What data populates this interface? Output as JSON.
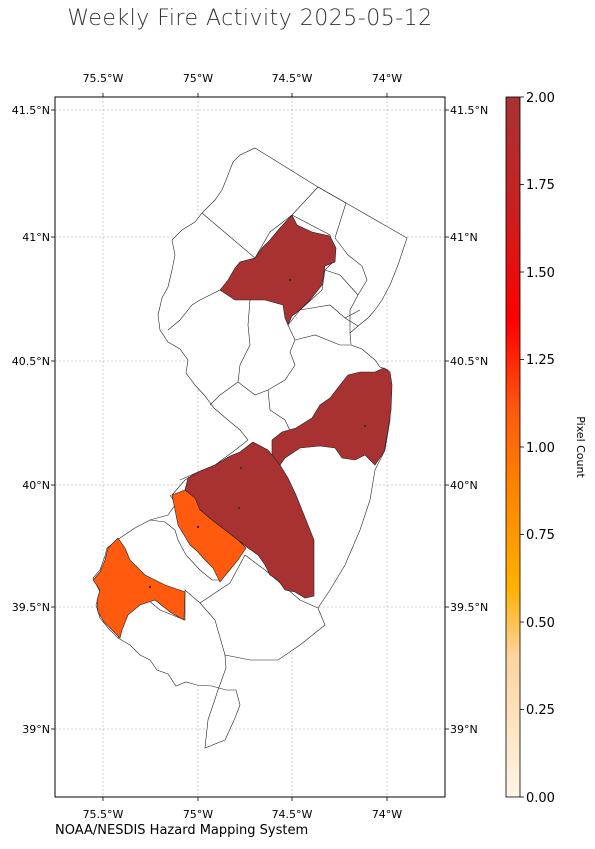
{
  "title": "Weekly Fire Activity 2025-05-12",
  "credit": "NOAA/NESDIS Hazard Mapping System",
  "map": {
    "region": "New Jersey counties",
    "lon_ticks": [
      "75.5°W",
      "75°W",
      "74.5°W",
      "74°W"
    ],
    "lat_ticks": [
      "41.5°N",
      "41°N",
      "40.5°N",
      "40°N",
      "39.5°N",
      "39°N"
    ],
    "lon_values": [
      -75.5,
      -75.0,
      -74.5,
      -74.0
    ],
    "lat_values": [
      41.5,
      41.0,
      40.5,
      40.0,
      39.5,
      39.0
    ],
    "gridlines": true,
    "highlighted_counties": [
      {
        "name": "Morris",
        "pixel_count": 2,
        "color": "#a83232"
      },
      {
        "name": "Ocean",
        "pixel_count": 2,
        "color": "#a83232"
      },
      {
        "name": "Burlington",
        "pixel_count": 2,
        "color": "#a83232"
      },
      {
        "name": "Camden",
        "pixel_count": 1,
        "color": "#ff5a0e"
      },
      {
        "name": "Salem",
        "pixel_count": 1,
        "color": "#ff5a0e"
      }
    ],
    "fire_points": [
      {
        "lon": -74.51,
        "lat": 40.83
      },
      {
        "lon": -74.12,
        "lat": 40.24
      },
      {
        "lon": -74.78,
        "lat": 40.07
      },
      {
        "lon": -74.78,
        "lat": 39.91
      },
      {
        "lon": -75.0,
        "lat": 39.84
      },
      {
        "lon": -75.26,
        "lat": 39.59
      }
    ]
  },
  "colorbar": {
    "label": "Pixel Count",
    "min": 0,
    "max": 2,
    "ticks": [
      "0.00",
      "0.25",
      "0.50",
      "0.75",
      "1.00",
      "1.25",
      "1.50",
      "1.75",
      "2.00"
    ],
    "colors": [
      "#fff5e6",
      "#fdd49e",
      "#ffb000",
      "#ff8000",
      "#ff5a0e",
      "#ff0000",
      "#e8221e",
      "#c62222",
      "#a83232"
    ]
  }
}
